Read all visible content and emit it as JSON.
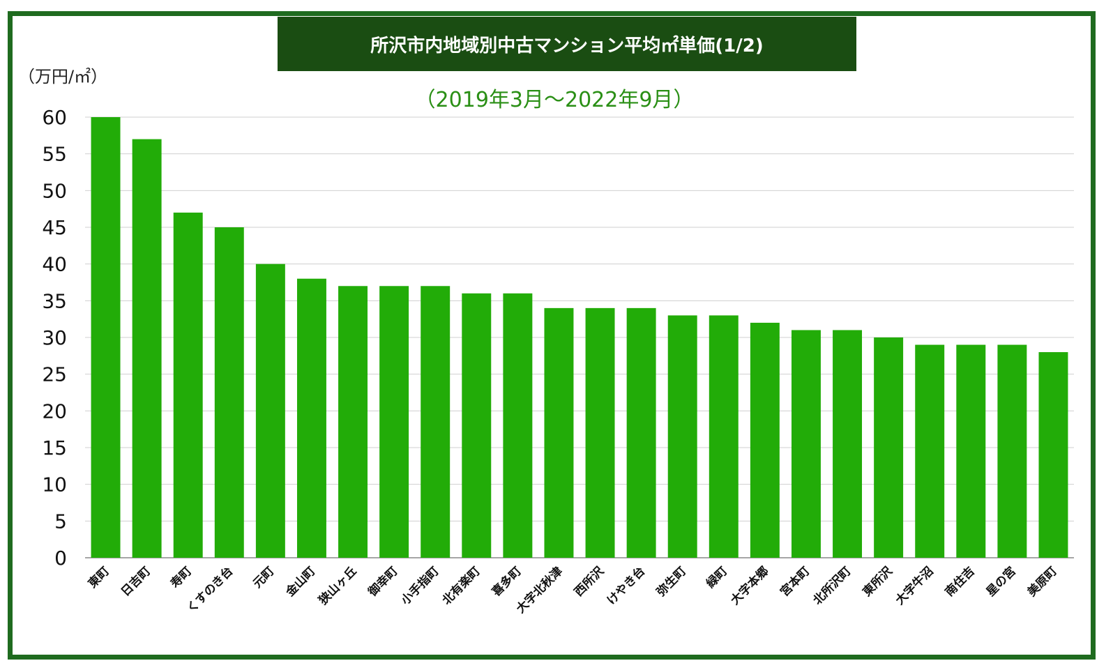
{
  "title": "所沢市内地域別中古マンション平均㎡単価(1/2)",
  "subtitle": "（2019年3月～2022年9月）",
  "colors": {
    "bar": "#22ac08",
    "frame": "#1f6b1f",
    "title_bg": "#1a4d12",
    "subtitle": "#2a8f15",
    "grid": "#cfcfcf"
  },
  "chart_data": {
    "type": "bar",
    "title": "所沢市内地域別中古マンション平均㎡単価(1/2)",
    "subtitle": "（2019年3月～2022年9月）",
    "ylabel": "（万円/㎡）",
    "xlabel": "",
    "ylim": [
      0,
      60
    ],
    "yticks": [
      0,
      5,
      10,
      15,
      20,
      25,
      30,
      35,
      40,
      45,
      50,
      55,
      60
    ],
    "grid": true,
    "legend": "none",
    "categories": [
      "東町",
      "日吉町",
      "寿町",
      "くすのき台",
      "元町",
      "金山町",
      "狭山ヶ丘",
      "御幸町",
      "小手指町",
      "北有楽町",
      "喜多町",
      "大字北秋津",
      "西所沢",
      "けやき台",
      "弥生町",
      "緑町",
      "大字本郷",
      "宮本町",
      "北所沢町",
      "東所沢",
      "大字牛沼",
      "南住吉",
      "星の宮",
      "美原町"
    ],
    "values": [
      60,
      57,
      47,
      45,
      40,
      38,
      37,
      37,
      37,
      36,
      36,
      34,
      34,
      34,
      33,
      33,
      32,
      31,
      31,
      30,
      29,
      29,
      29,
      28
    ]
  }
}
